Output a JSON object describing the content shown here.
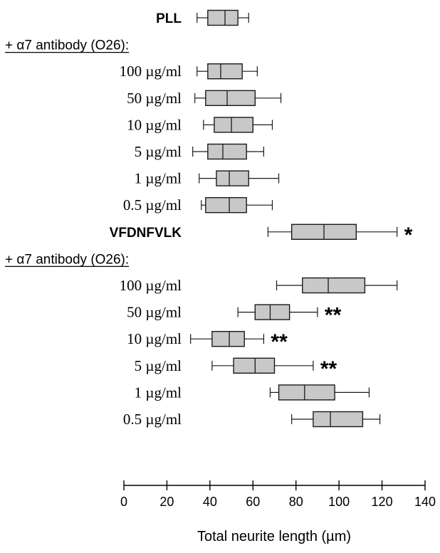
{
  "chart_data": {
    "type": "boxplot",
    "orientation": "horizontal",
    "xlabel": "Total neurite length (µm)",
    "xlim": [
      0,
      140
    ],
    "xticks": [
      0,
      20,
      40,
      60,
      80,
      100,
      120,
      140
    ],
    "rows": [
      {
        "label": "PLL",
        "kind": "group",
        "stats": {
          "min": 34,
          "q1": 39,
          "median": 47,
          "q3": 53,
          "max": 58
        },
        "sig": ""
      },
      {
        "label": "+ α7 antibody (O26):",
        "kind": "header"
      },
      {
        "label": "100 µg/ml",
        "kind": "dose",
        "stats": {
          "min": 34,
          "q1": 39,
          "median": 45,
          "q3": 55,
          "max": 62
        },
        "sig": ""
      },
      {
        "label": "50 µg/ml",
        "kind": "dose",
        "stats": {
          "min": 33,
          "q1": 38,
          "median": 48,
          "q3": 61,
          "max": 73
        },
        "sig": ""
      },
      {
        "label": "10 µg/ml",
        "kind": "dose",
        "stats": {
          "min": 37,
          "q1": 42,
          "median": 50,
          "q3": 60,
          "max": 69
        },
        "sig": ""
      },
      {
        "label": "5 µg/ml",
        "kind": "dose",
        "stats": {
          "min": 32,
          "q1": 39,
          "median": 46,
          "q3": 57,
          "max": 65
        },
        "sig": ""
      },
      {
        "label": "1 µg/ml",
        "kind": "dose",
        "stats": {
          "min": 35,
          "q1": 43,
          "median": 49,
          "q3": 58,
          "max": 72
        },
        "sig": ""
      },
      {
        "label": "0.5 µg/ml",
        "kind": "dose",
        "stats": {
          "min": 36,
          "q1": 38,
          "median": 49,
          "q3": 57,
          "max": 69
        },
        "sig": ""
      },
      {
        "label": "VFDNFVLK",
        "kind": "group",
        "stats": {
          "min": 67,
          "q1": 78,
          "median": 93,
          "q3": 108,
          "max": 127
        },
        "sig": "*"
      },
      {
        "label": "+ α7 antibody (O26):",
        "kind": "header"
      },
      {
        "label": "100 µg/ml",
        "kind": "dose",
        "stats": {
          "min": 71,
          "q1": 83,
          "median": 95,
          "q3": 112,
          "max": 127
        },
        "sig": ""
      },
      {
        "label": "50 µg/ml",
        "kind": "dose",
        "stats": {
          "min": 53,
          "q1": 61,
          "median": 68,
          "q3": 77,
          "max": 90
        },
        "sig": "**"
      },
      {
        "label": "10 µg/ml",
        "kind": "dose",
        "stats": {
          "min": 31,
          "q1": 41,
          "median": 49,
          "q3": 56,
          "max": 65
        },
        "sig": "**"
      },
      {
        "label": "5 µg/ml",
        "kind": "dose",
        "stats": {
          "min": 41,
          "q1": 51,
          "median": 61,
          "q3": 70,
          "max": 88
        },
        "sig": "**"
      },
      {
        "label": "1 µg/ml",
        "kind": "dose",
        "stats": {
          "min": 68,
          "q1": 72,
          "median": 84,
          "q3": 98,
          "max": 114
        },
        "sig": ""
      },
      {
        "label": "0.5 µg/ml",
        "kind": "dose",
        "stats": {
          "min": 78,
          "q1": 88,
          "median": 96,
          "q3": 111,
          "max": 119
        },
        "sig": ""
      }
    ]
  },
  "colors": {
    "box_fill": "#c8c8c8",
    "stroke": "#1a1a1a"
  }
}
